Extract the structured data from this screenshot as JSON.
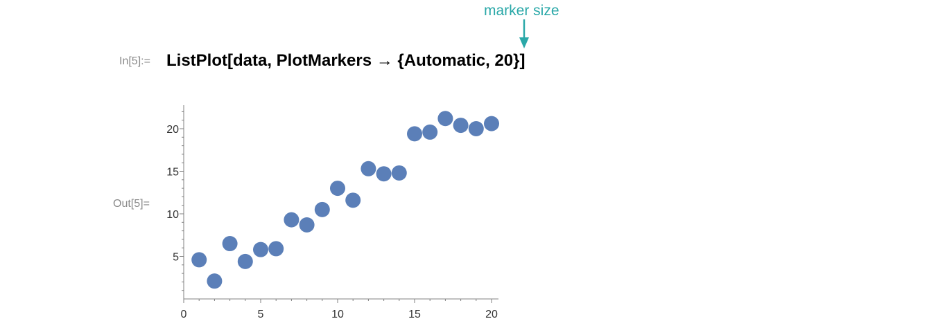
{
  "annotation": {
    "text": "marker size"
  },
  "cell_in": {
    "label": "In[5]:=",
    "code": "ListPlot[data, PlotMarkers → {Automatic, 20}]"
  },
  "cell_out": {
    "label": "Out[5]="
  },
  "colors": {
    "marker": "#5b7fb8",
    "accent": "#2aa8a8",
    "axis": "#808080",
    "tick_text": "#333333",
    "prompt": "#8a8a8a"
  },
  "chart_data": {
    "type": "scatter",
    "title": "",
    "xlabel": "",
    "ylabel": "",
    "x": [
      1,
      2,
      3,
      4,
      5,
      6,
      7,
      8,
      9,
      10,
      11,
      12,
      13,
      14,
      15,
      16,
      17,
      18,
      19,
      20
    ],
    "y": [
      4.6,
      2.1,
      6.5,
      4.4,
      5.8,
      5.9,
      9.3,
      8.7,
      10.5,
      13.0,
      11.6,
      15.3,
      14.7,
      14.8,
      19.4,
      19.6,
      21.2,
      20.4,
      20.0,
      20.6
    ],
    "xlim": [
      0,
      20.5
    ],
    "ylim": [
      0,
      22.5
    ],
    "xticks": [
      0,
      5,
      10,
      15,
      20
    ],
    "yticks": [
      5,
      10,
      15,
      20
    ],
    "marker_size": 20,
    "grid": false,
    "legend": "none"
  }
}
